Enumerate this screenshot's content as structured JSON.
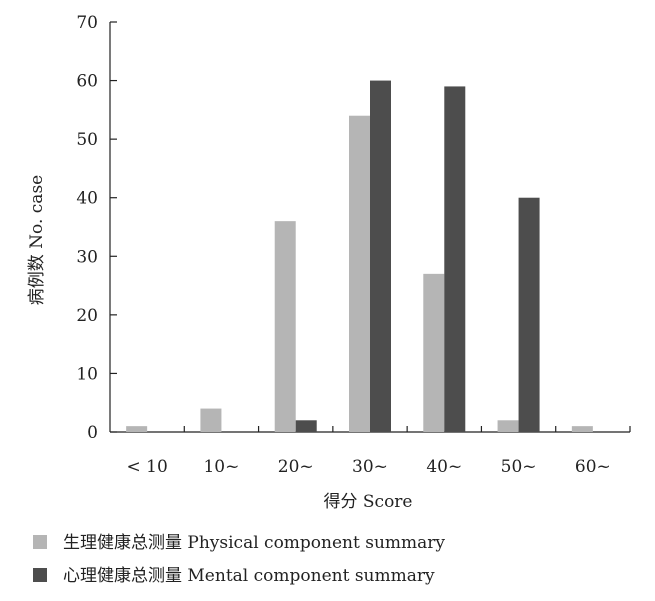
{
  "chart_data": {
    "type": "bar",
    "categories": [
      "< 10",
      "10~",
      "20~",
      "30~",
      "40~",
      "50~",
      "60~"
    ],
    "series": [
      {
        "name": "生理健康总测量 Physical component summary",
        "color": "#b5b5b5",
        "values": [
          1,
          4,
          36,
          54,
          27,
          2,
          1
        ]
      },
      {
        "name": "心理健康总测量 Mental component summary",
        "color": "#4d4d4d",
        "values": [
          0,
          0,
          2,
          60,
          59,
          40,
          0
        ]
      }
    ],
    "xlabel": "得分 Score",
    "ylabel": "病例数 No. case",
    "ylim": [
      0,
      70
    ],
    "yticks": [
      0,
      10,
      20,
      30,
      40,
      50,
      60,
      70
    ],
    "grid": false,
    "legend_position": "bottom"
  }
}
